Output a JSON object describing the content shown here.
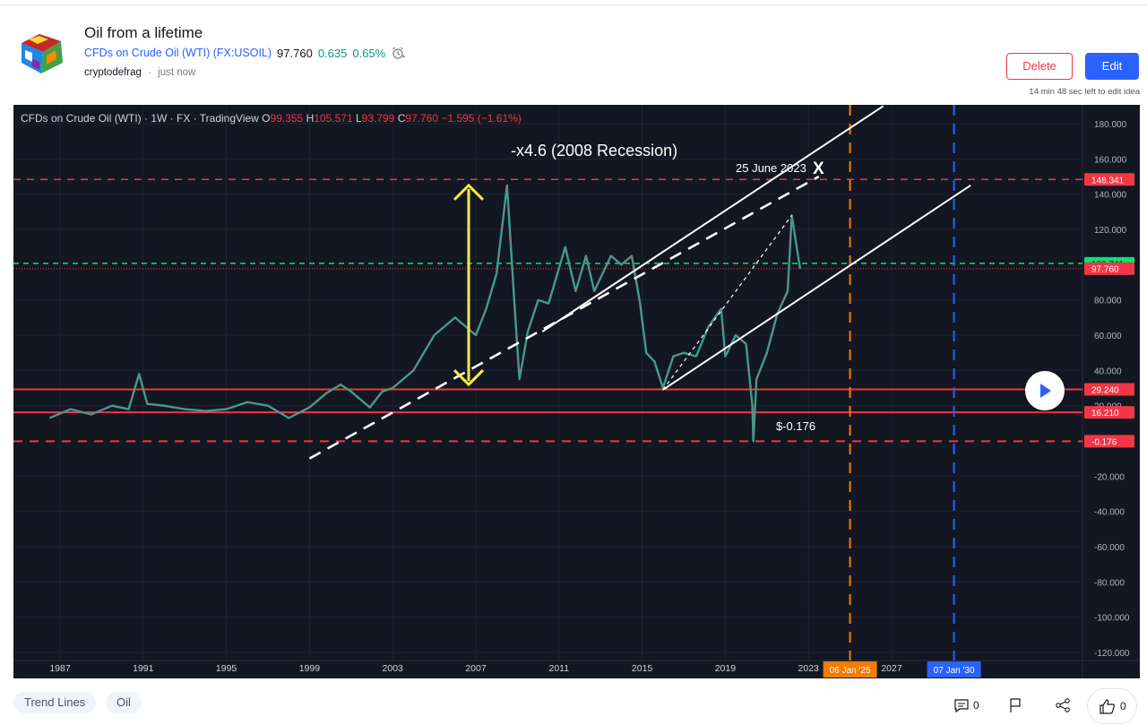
{
  "idea": {
    "title": "Oil from a lifetime",
    "symbol_label": "CFDs on Crude Oil (WTI) (FX:USOIL)",
    "price": "97.760",
    "change": "0.635",
    "change_pct": "0.65%",
    "author": "cryptodefrag",
    "time": "just now",
    "delete_label": "Delete",
    "edit_label": "Edit",
    "edit_note": "14 min 48 sec left to edit idea"
  },
  "legend": {
    "name": "CFDs on Crude Oil (WTI) · 1W · FX · TradingView",
    "o_label": "O",
    "o_val": "99.355",
    "h_label": "H",
    "h_val": "105.571",
    "l_label": "L",
    "l_val": "93.799",
    "c_label": "C",
    "c_val": "97.760",
    "chg": "−1.595 (−1.61%)"
  },
  "chart_data": {
    "type": "line",
    "x_labels": [
      "1987",
      "1991",
      "1995",
      "1999",
      "2003",
      "2007",
      "2011",
      "2015",
      "2019",
      "2023",
      "2027"
    ],
    "y_ticks": [
      "180.000",
      "160.000",
      "140.000",
      "120.000",
      "80.000",
      "60.000",
      "40.000",
      "20.000",
      "-20.000",
      "-40.000",
      "-60.000",
      "-80.000",
      "-100.000",
      "-120.000"
    ],
    "ylim": [
      -120,
      185
    ],
    "series": [
      {
        "points": [
          [
            1986.5,
            13
          ],
          [
            1987.5,
            18
          ],
          [
            1988.5,
            15
          ],
          [
            1989.5,
            20
          ],
          [
            1990.3,
            18
          ],
          [
            1990.8,
            38
          ],
          [
            1991.2,
            21
          ],
          [
            1992,
            20
          ],
          [
            1993,
            18
          ],
          [
            1994,
            17
          ],
          [
            1995,
            18
          ],
          [
            1996,
            22
          ],
          [
            1997,
            20
          ],
          [
            1998,
            13
          ],
          [
            1999,
            19
          ],
          [
            1999.8,
            27
          ],
          [
            2000.5,
            32
          ],
          [
            2001,
            28
          ],
          [
            2001.9,
            19
          ],
          [
            2002.5,
            28
          ],
          [
            2003,
            30
          ],
          [
            2004,
            40
          ],
          [
            2005,
            60
          ],
          [
            2006,
            70
          ],
          [
            2007,
            60
          ],
          [
            2007.5,
            75
          ],
          [
            2008.0,
            95
          ],
          [
            2008.5,
            145
          ],
          [
            2008.9,
            70
          ],
          [
            2009.1,
            35
          ],
          [
            2009.5,
            62
          ],
          [
            2010,
            80
          ],
          [
            2010.5,
            78
          ],
          [
            2011.3,
            110
          ],
          [
            2011.8,
            85
          ],
          [
            2012.3,
            105
          ],
          [
            2012.7,
            85
          ],
          [
            2013.5,
            105
          ],
          [
            2014,
            100
          ],
          [
            2014.5,
            105
          ],
          [
            2014.9,
            78
          ],
          [
            2015.2,
            50
          ],
          [
            2015.6,
            45
          ],
          [
            2016.0,
            30
          ],
          [
            2016.5,
            48
          ],
          [
            2017,
            50
          ],
          [
            2017.6,
            48
          ],
          [
            2018.2,
            65
          ],
          [
            2018.8,
            75
          ],
          [
            2019.0,
            48
          ],
          [
            2019.5,
            60
          ],
          [
            2020.0,
            55
          ],
          [
            2020.3,
            20
          ],
          [
            2020.35,
            -0.18
          ],
          [
            2020.5,
            35
          ],
          [
            2021,
            50
          ],
          [
            2021.5,
            72
          ],
          [
            2022.0,
            85
          ],
          [
            2022.2,
            128
          ],
          [
            2022.5,
            105
          ],
          [
            2022.6,
            97.76
          ]
        ]
      }
    ],
    "price_labels": [
      {
        "text": "148.341",
        "color": "#f23645",
        "value": 148.341
      },
      {
        "text": "100.741",
        "color": "#00e676",
        "value": 100.741
      },
      {
        "text": "97.760",
        "color": "#f23645",
        "value": 97.76
      },
      {
        "text": "29.240",
        "color": "#f23645",
        "value": 29.24
      },
      {
        "text": "16.210",
        "color": "#f23645",
        "value": 16.21
      },
      {
        "text": "-0.176",
        "color": "#f23645",
        "value": -0.176
      }
    ],
    "annotations": {
      "recession": "-x4.6 (2008 Recession)",
      "june": "25 June 2023",
      "x_mark": "X",
      "low": "$-0.176"
    },
    "time_markers": [
      {
        "text": "06 Jan '25",
        "color": "#f57c00",
        "x": 2025.0
      },
      {
        "text": "07 Jan '30",
        "color": "#2962ff",
        "x": 2030.0
      }
    ]
  },
  "footer": {
    "tags": [
      "Trend Lines",
      "Oil"
    ],
    "comments": "0",
    "likes": "0"
  }
}
